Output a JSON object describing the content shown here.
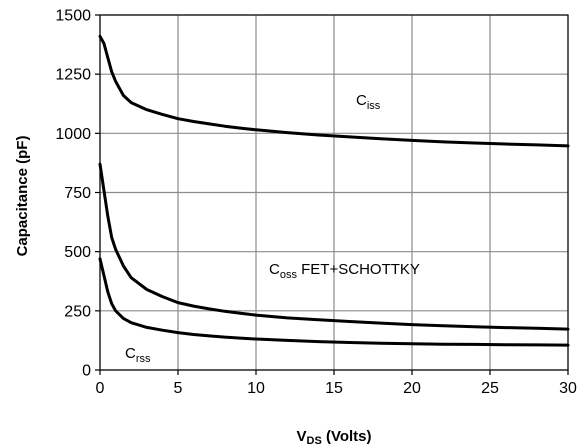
{
  "chart_data": {
    "type": "line",
    "xlabel": {
      "main": "V",
      "sub": "DS",
      "rest": " (Volts)"
    },
    "ylabel": "Capacitance (pF)",
    "xlim": [
      0,
      30
    ],
    "ylim": [
      0,
      1500
    ],
    "x_ticks": [
      0,
      5,
      10,
      15,
      20,
      25,
      30
    ],
    "x_tick_labels": [
      "0",
      "5",
      "10",
      "15",
      "20",
      "25",
      "30"
    ],
    "y_ticks": [
      0,
      250,
      500,
      750,
      1000,
      1250,
      1500
    ],
    "y_tick_labels": [
      "0",
      "250",
      "500",
      "750",
      "1000",
      "1250",
      "1500"
    ],
    "grid": true,
    "series": [
      {
        "name": "Ciss",
        "label_main": "C",
        "label_sub": "iss",
        "label_rest": "",
        "x": [
          0,
          0.25,
          0.5,
          0.75,
          1,
          1.5,
          2,
          3,
          4,
          5,
          6,
          7,
          8,
          9,
          10,
          12,
          14,
          16,
          18,
          20,
          22,
          24,
          26,
          28,
          30
        ],
        "values": [
          1410,
          1380,
          1320,
          1260,
          1220,
          1160,
          1130,
          1100,
          1080,
          1062,
          1050,
          1040,
          1030,
          1022,
          1015,
          1003,
          993,
          985,
          977,
          970,
          964,
          959,
          955,
          951,
          947
        ]
      },
      {
        "name": "Coss FET+SCHOTTKY",
        "label_main": "C",
        "label_sub": "oss",
        "label_rest": " FET+SCHOTTKY",
        "x": [
          0,
          0.25,
          0.5,
          0.75,
          1,
          1.5,
          2,
          3,
          4,
          5,
          6,
          7,
          8,
          9,
          10,
          12,
          14,
          16,
          18,
          20,
          22,
          24,
          26,
          28,
          30
        ],
        "values": [
          870,
          760,
          650,
          560,
          510,
          440,
          390,
          340,
          310,
          285,
          270,
          258,
          248,
          240,
          232,
          220,
          212,
          205,
          198,
          192,
          187,
          183,
          179,
          176,
          173
        ]
      },
      {
        "name": "Crss",
        "label_main": "C",
        "label_sub": "rss",
        "label_rest": "",
        "x": [
          0,
          0.25,
          0.5,
          0.75,
          1,
          1.5,
          2,
          3,
          4,
          5,
          6,
          7,
          8,
          9,
          10,
          12,
          14,
          16,
          18,
          20,
          22,
          24,
          26,
          28,
          30
        ],
        "values": [
          470,
          400,
          330,
          280,
          250,
          218,
          200,
          180,
          168,
          158,
          150,
          144,
          139,
          135,
          131,
          125,
          120,
          116,
          113,
          111,
          109,
          108,
          107,
          106,
          105
        ]
      }
    ]
  }
}
